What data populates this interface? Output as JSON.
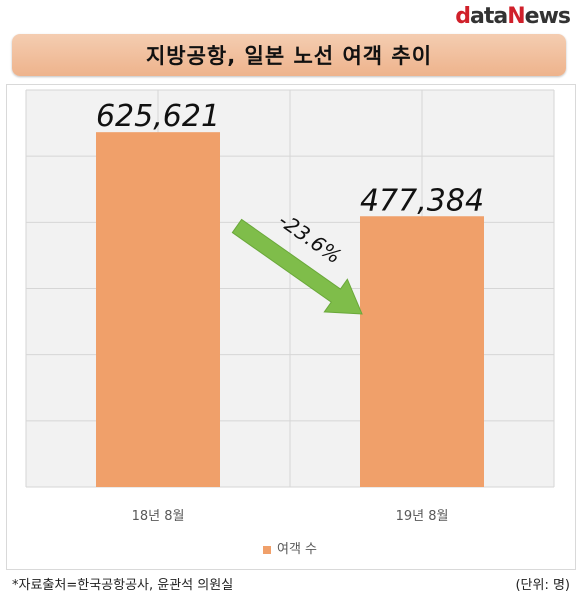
{
  "brand": {
    "d": "d",
    "ata": "ata",
    "n": "N",
    "ews": "ews"
  },
  "chart_data": {
    "type": "bar",
    "title": "지방공항, 일본 노선 여객 추이",
    "categories": [
      "18년 8월",
      "19년 8월"
    ],
    "series": [
      {
        "name": "여객 수",
        "values": [
          625621,
          477384
        ]
      }
    ],
    "data_labels": [
      "625,621",
      "477,384"
    ],
    "change_annotation": "-23.6%",
    "ylim": [
      0,
      700000
    ],
    "grid": true,
    "legend_position": "bottom",
    "bar_color": "#f0a06a",
    "arrow_color": "#7fbd4a"
  },
  "footer": {
    "source": "*자료출처=한국공항공사,  윤관석 의원실",
    "unit": "(단위: 명)"
  }
}
